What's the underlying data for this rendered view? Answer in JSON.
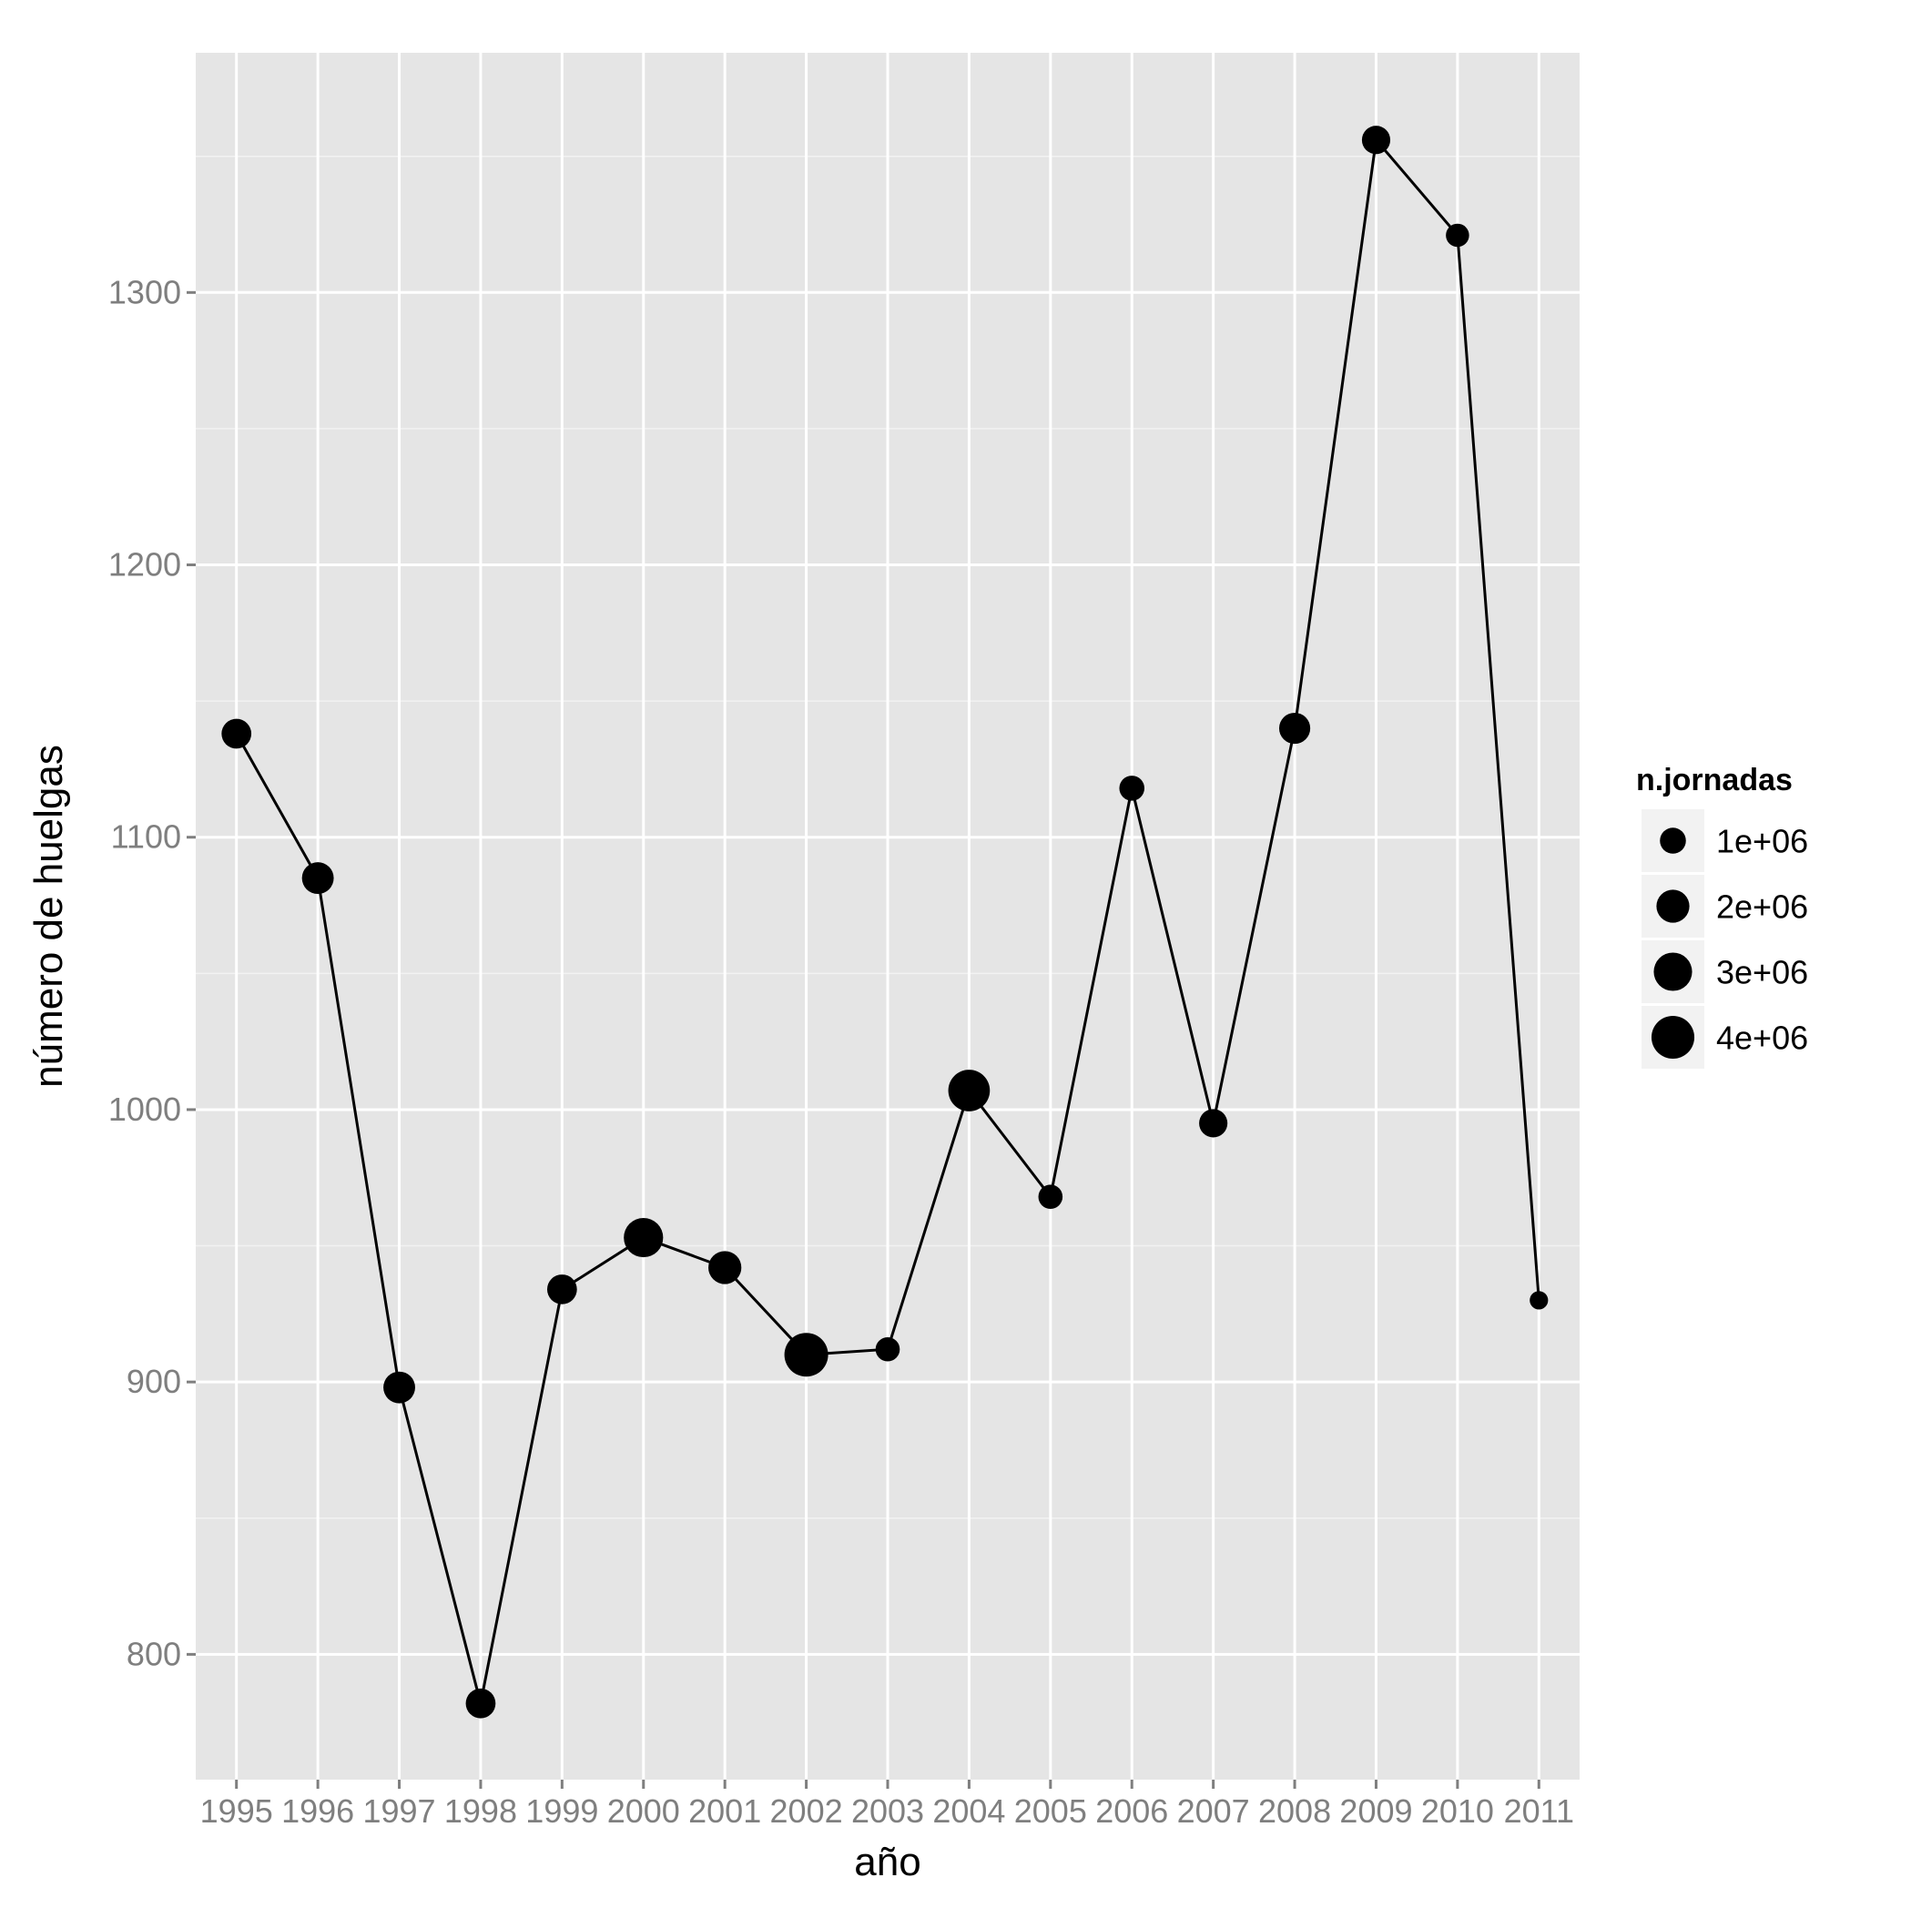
{
  "chart_data": {
    "type": "line",
    "xlabel": "año",
    "ylabel": "número de huelgas",
    "x": [
      "1995",
      "1996",
      "1997",
      "1998",
      "1999",
      "2000",
      "2001",
      "2002",
      "2003",
      "2004",
      "2005",
      "2006",
      "2007",
      "2008",
      "2009",
      "2010",
      "2011"
    ],
    "series": [
      {
        "values": [
          1138,
          1085,
          898,
          782,
          934,
          953,
          942,
          910,
          912,
          1007,
          968,
          1118,
          995,
          1140,
          1356,
          1321,
          930
        ],
        "n_jornadas": [
          1500000,
          1800000,
          1800000,
          1500000,
          1500000,
          3200000,
          2000000,
          4200000,
          800000,
          3700000,
          800000,
          900000,
          1300000,
          1700000,
          1300000,
          700000,
          300000
        ]
      }
    ],
    "ylim": [
      754,
      1388
    ],
    "yticks": [
      800,
      900,
      1000,
      1100,
      1200,
      1300
    ],
    "ytick_labels": [
      "800",
      "900",
      "1000",
      "1100",
      "1200",
      "1300"
    ],
    "grid": true,
    "panel_color": "#e5e5e5",
    "line_color": "#000000",
    "point_color": "#000000",
    "legend": {
      "title": "n.jornadas",
      "placement": "right",
      "values": [
        1000000,
        2000000,
        3000000,
        4000000
      ],
      "labels": [
        "1e+06",
        "2e+06",
        "3e+06",
        "4e+06"
      ]
    }
  }
}
